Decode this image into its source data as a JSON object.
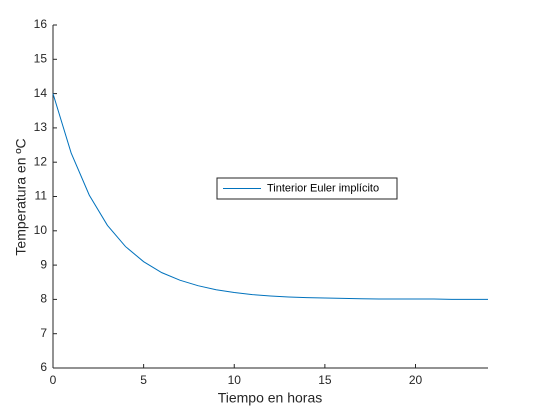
{
  "chart_data": {
    "type": "line",
    "x_label": "Tiempo en horas",
    "y_label": "Temperatura en ºC",
    "x": [
      0,
      1,
      2,
      3,
      4,
      5,
      6,
      7,
      8,
      9,
      10,
      11,
      12,
      13,
      14,
      15,
      16,
      17,
      18,
      19,
      20,
      21,
      22,
      23,
      24
    ],
    "series": [
      {
        "name": "Tinterior Euler implícito",
        "color": "#0072bd",
        "values": [
          14,
          12.27,
          11.04,
          10.16,
          9.54,
          9.1,
          8.78,
          8.56,
          8.4,
          8.28,
          8.2,
          8.14,
          8.1,
          8.07,
          8.05,
          8.04,
          8.03,
          8.02,
          8.01,
          8.01,
          8.01,
          8.01,
          8,
          8,
          8
        ]
      }
    ],
    "xlim": [
      0,
      24
    ],
    "xticks": [
      0,
      5,
      10,
      15,
      20
    ],
    "ylim": [
      6,
      16
    ],
    "yticks": [
      6,
      7,
      8,
      9,
      10,
      11,
      12,
      13,
      14,
      15,
      16
    ],
    "legend": "center"
  }
}
